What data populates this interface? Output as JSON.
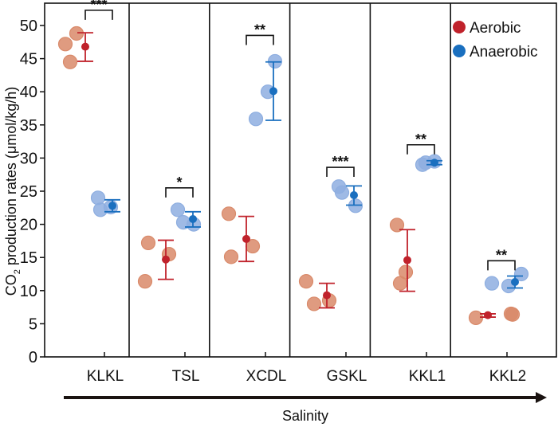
{
  "chart_data": {
    "type": "scatter",
    "title": "",
    "xlabel": "Salinity",
    "ylabel": "CO2 production rates (μmol/kg/h)",
    "ylabel_parts": {
      "pre": "CO",
      "sub": "2",
      "post": " production rates (μmol/kg/h)"
    },
    "ylim": [
      0,
      53
    ],
    "yticks": [
      0,
      5,
      10,
      15,
      20,
      25,
      30,
      35,
      40,
      45,
      50
    ],
    "grid": false,
    "legend_position": "top-right",
    "categories": [
      "KLKL",
      "TSL",
      "XCDL",
      "GSKL",
      "KKL1",
      "KKL2"
    ],
    "series": [
      {
        "name": "Aerobic",
        "color": "#c0222b",
        "point_color": "#d98a6a",
        "groups": [
          {
            "points": [
              47.2,
              48.8,
              44.5
            ],
            "mean": 46.8,
            "err_low": 44.6,
            "err_high": 48.9
          },
          {
            "points": [
              17.2,
              11.4,
              15.5
            ],
            "mean": 14.7,
            "err_low": 11.7,
            "err_high": 17.6
          },
          {
            "points": [
              21.6,
              15.1,
              16.7
            ],
            "mean": 17.8,
            "err_low": 14.4,
            "err_high": 21.2
          },
          {
            "points": [
              11.4,
              8.0,
              8.5
            ],
            "mean": 9.3,
            "err_low": 7.4,
            "err_high": 11.1
          },
          {
            "points": [
              19.9,
              12.8,
              11.1
            ],
            "mean": 14.6,
            "err_low": 9.9,
            "err_high": 19.2
          },
          {
            "points": [
              5.9,
              6.5,
              6.4
            ],
            "mean": 6.3,
            "err_low": 6.0,
            "err_high": 6.5
          }
        ]
      },
      {
        "name": "Anaerobic",
        "color": "#1a6fbf",
        "point_color": "#8eaee0",
        "groups": [
          {
            "points": [
              24.0,
              22.2,
              22.6
            ],
            "mean": 22.8,
            "err_low": 21.9,
            "err_high": 23.7
          },
          {
            "points": [
              22.2,
              20.3,
              20.0
            ],
            "mean": 20.8,
            "err_low": 19.6,
            "err_high": 21.9
          },
          {
            "points": [
              44.6,
              40.0,
              35.9
            ],
            "mean": 40.1,
            "err_low": 35.7,
            "err_high": 44.5
          },
          {
            "points": [
              25.7,
              24.8,
              22.8
            ],
            "mean": 24.4,
            "err_low": 22.9,
            "err_high": 25.8
          },
          {
            "points": [
              29.3,
              29.0,
              29.5
            ],
            "mean": 29.3,
            "err_low": 29.0,
            "err_high": 29.6
          },
          {
            "points": [
              11.1,
              10.7,
              12.5
            ],
            "mean": 11.3,
            "err_low": 10.4,
            "err_high": 12.2
          }
        ]
      }
    ],
    "significance": [
      {
        "category": "KLKL",
        "label": "***",
        "level": 52.3
      },
      {
        "category": "TSL",
        "label": "*",
        "level": 25.5
      },
      {
        "category": "XCDL",
        "label": "**",
        "level": 48.5
      },
      {
        "category": "GSKL",
        "label": "***",
        "level": 28.6
      },
      {
        "category": "KKL1",
        "label": "**",
        "level": 32.0
      },
      {
        "category": "KKL2",
        "label": "**",
        "level": 14.5
      }
    ]
  }
}
